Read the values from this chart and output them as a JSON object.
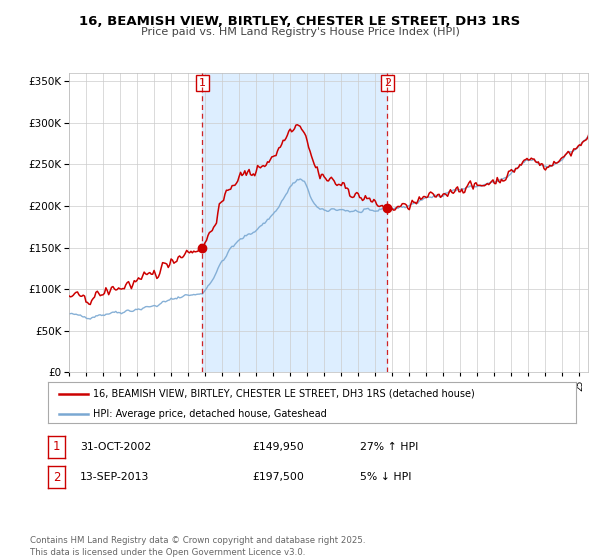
{
  "title": "16, BEAMISH VIEW, BIRTLEY, CHESTER LE STREET, DH3 1RS",
  "subtitle": "Price paid vs. HM Land Registry's House Price Index (HPI)",
  "sale1_date": "31-OCT-2002",
  "sale1_price": 149950,
  "sale1_pct": "27% ↑ HPI",
  "sale1_year": 2002.83,
  "sale2_date": "13-SEP-2013",
  "sale2_price": 197500,
  "sale2_pct": "5% ↓ HPI",
  "sale2_year": 2013.71,
  "legend1": "16, BEAMISH VIEW, BIRTLEY, CHESTER LE STREET, DH3 1RS (detached house)",
  "legend2": "HPI: Average price, detached house, Gateshead",
  "footer": "Contains HM Land Registry data © Crown copyright and database right 2025.\nThis data is licensed under the Open Government Licence v3.0.",
  "red_color": "#cc0000",
  "blue_color": "#7aa8d2",
  "shaded_color": "#ddeeff",
  "ylim": [
    0,
    360000
  ],
  "xlim_start": 1995.0,
  "xlim_end": 2025.5
}
